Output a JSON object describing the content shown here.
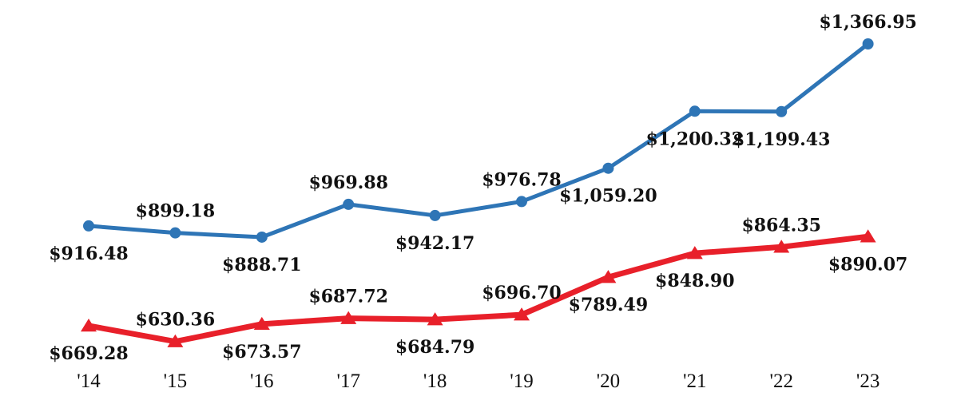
{
  "chart_data": {
    "type": "line",
    "title": "",
    "xlabel": "",
    "ylabel": "",
    "grid": false,
    "legend": "none",
    "ylim": [
      600,
      1400
    ],
    "categories": [
      "'14",
      "'15",
      "'16",
      "'17",
      "'18",
      "'19",
      "'20",
      "'21",
      "'22",
      "'23"
    ],
    "series": [
      {
        "color": "#2E75B6",
        "marker": "circle",
        "values": [
          916.48,
          899.18,
          888.71,
          969.88,
          942.17,
          976.78,
          1059.2,
          1200.32,
          1199.43,
          1366.95
        ],
        "labels": [
          "$916.48",
          "$899.18",
          "$888.71",
          "$969.88",
          "$942.17",
          "$976.78",
          "$1,059.20",
          "$1,200.32",
          "$1,199.43",
          "$1,366.95"
        ],
        "label_positions": [
          "below",
          "above",
          "below",
          "above",
          "below",
          "above",
          "below",
          "below",
          "below",
          "above"
        ]
      },
      {
        "color": "#E8202A",
        "marker": "triangle",
        "values": [
          669.28,
          630.36,
          673.57,
          687.72,
          684.79,
          696.7,
          789.49,
          848.9,
          864.35,
          890.07
        ],
        "labels": [
          "$669.28",
          "$630.36",
          "$673.57",
          "$687.72",
          "$684.79",
          "$696.70",
          "$789.49",
          "$848.90",
          "$864.35",
          "$890.07"
        ],
        "label_positions": [
          "below",
          "above",
          "below",
          "above",
          "below",
          "above",
          "below",
          "below",
          "above",
          "below"
        ]
      }
    ]
  }
}
